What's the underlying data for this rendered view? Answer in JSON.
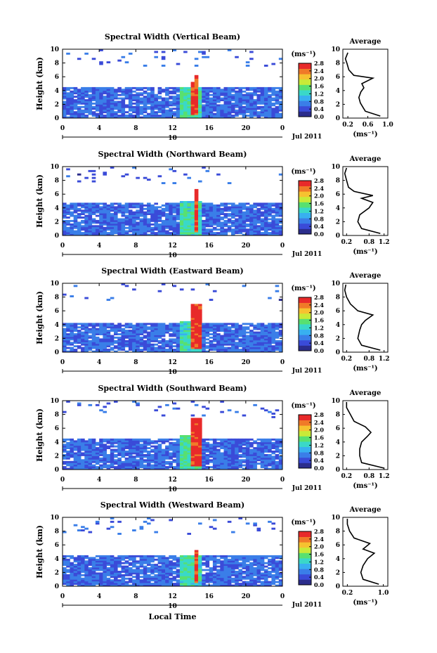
{
  "chart_data": [
    {
      "type": "heatmap",
      "title": "Spectral Width (Vertical Beam)",
      "ylabel": "Height (km)",
      "x_ticks": [
        "0",
        "4",
        "8",
        "12",
        "16",
        "20",
        "0"
      ],
      "y_ticks": [
        "0",
        "2",
        "4",
        "6",
        "8",
        "10"
      ],
      "xlim": [
        0,
        24
      ],
      "ylim": [
        0,
        10
      ],
      "date_marker": "10",
      "date_label": "Jul 2011",
      "colorbar": {
        "unit": "(ms⁻¹)",
        "ticks": [
          "0.0",
          "0.4",
          "0.8",
          "1.2",
          "1.6",
          "2.0",
          "2.4",
          "2.8"
        ]
      },
      "layers": [
        {
          "x": [
            0,
            24
          ],
          "y": [
            0,
            4.5
          ],
          "level": 0.5
        },
        {
          "x": [
            13,
            15
          ],
          "y": [
            0,
            4.5
          ],
          "level": 1.4
        },
        {
          "x": [
            14.2,
            14.9
          ],
          "y": [
            0.5,
            5.2
          ],
          "level": 2.8
        },
        {
          "x": [
            14.3,
            14.8
          ],
          "y": [
            5.2,
            6.3
          ],
          "level": 2.6
        }
      ],
      "average": {
        "title": "Average",
        "xlabel": "(ms⁻¹)",
        "x_ticks": [
          "0.2",
          "0.6",
          "1.0"
        ],
        "xlim": [
          0.1,
          1.0
        ],
        "ylim": [
          0,
          10
        ],
        "points": [
          [
            0.85,
            0.3
          ],
          [
            0.55,
            1.0
          ],
          [
            0.5,
            1.6
          ],
          [
            0.45,
            2.2
          ],
          [
            0.42,
            3.0
          ],
          [
            0.46,
            3.8
          ],
          [
            0.52,
            4.4
          ],
          [
            0.48,
            5.0
          ],
          [
            0.7,
            5.8
          ],
          [
            0.32,
            6.2
          ],
          [
            0.22,
            7.0
          ],
          [
            0.18,
            8.0
          ],
          [
            0.15,
            8.6
          ],
          [
            0.2,
            9.5
          ]
        ]
      }
    },
    {
      "type": "heatmap",
      "title": "Spectral Width (Northward Beam)",
      "ylabel": "Height (km)",
      "x_ticks": [
        "0",
        "4",
        "8",
        "12",
        "16",
        "20",
        "0"
      ],
      "y_ticks": [
        "0",
        "2",
        "4",
        "6",
        "8",
        "10"
      ],
      "xlim": [
        0,
        24
      ],
      "ylim": [
        0,
        10
      ],
      "date_marker": "10",
      "date_label": "Jul 2011",
      "colorbar": {
        "unit": "(ms⁻¹)",
        "ticks": [
          "0.0",
          "0.4",
          "0.8",
          "1.2",
          "1.6",
          "2.0",
          "2.4",
          "2.8"
        ]
      },
      "layers": [
        {
          "x": [
            0,
            24
          ],
          "y": [
            0,
            4.8
          ],
          "level": 0.5
        },
        {
          "x": [
            13,
            15
          ],
          "y": [
            0,
            5.0
          ],
          "level": 1.3
        },
        {
          "x": [
            14.3,
            14.9
          ],
          "y": [
            0.4,
            6.8
          ],
          "level": 2.8
        }
      ],
      "average": {
        "title": "Average",
        "xlabel": "(ms⁻¹)",
        "x_ticks": [
          "0.2",
          "0.8",
          "1.2"
        ],
        "xlim": [
          0.1,
          1.3
        ],
        "ylim": [
          0,
          10
        ],
        "points": [
          [
            1.1,
            0.3
          ],
          [
            0.6,
            1.0
          ],
          [
            0.5,
            2.0
          ],
          [
            0.55,
            3.0
          ],
          [
            0.8,
            4.0
          ],
          [
            0.9,
            4.8
          ],
          [
            0.6,
            5.4
          ],
          [
            0.9,
            5.8
          ],
          [
            0.4,
            6.4
          ],
          [
            0.25,
            7.0
          ],
          [
            0.2,
            8.0
          ],
          [
            0.15,
            9.0
          ],
          [
            0.2,
            9.8
          ]
        ]
      }
    },
    {
      "type": "heatmap",
      "title": "Spectral Width (Eastward Beam)",
      "ylabel": "Height (km)",
      "x_ticks": [
        "0",
        "4",
        "8",
        "12",
        "16",
        "20",
        "0"
      ],
      "y_ticks": [
        "0",
        "2",
        "4",
        "6",
        "8",
        "10"
      ],
      "xlim": [
        0,
        24
      ],
      "ylim": [
        0,
        10
      ],
      "date_marker": "10",
      "date_label": "Jul 2011",
      "colorbar": {
        "unit": "(ms⁻¹)",
        "ticks": [
          "0.0",
          "0.4",
          "0.8",
          "1.2",
          "1.6",
          "2.0",
          "2.4",
          "2.8"
        ]
      },
      "layers": [
        {
          "x": [
            0,
            24
          ],
          "y": [
            0,
            4.3
          ],
          "level": 0.5
        },
        {
          "x": [
            13,
            15
          ],
          "y": [
            0,
            4.6
          ],
          "level": 1.3
        },
        {
          "x": [
            14.2,
            15.0
          ],
          "y": [
            0.4,
            7.0
          ],
          "level": 2.8
        }
      ],
      "average": {
        "title": "Average",
        "xlabel": "(ms⁻¹)",
        "x_ticks": [
          "0.2",
          "0.8",
          "1.2"
        ],
        "xlim": [
          0.1,
          1.3
        ],
        "ylim": [
          0,
          10
        ],
        "points": [
          [
            1.1,
            0.3
          ],
          [
            0.6,
            1.0
          ],
          [
            0.5,
            2.0
          ],
          [
            0.55,
            3.2
          ],
          [
            0.6,
            4.0
          ],
          [
            0.7,
            4.6
          ],
          [
            0.9,
            5.4
          ],
          [
            0.5,
            6.0
          ],
          [
            0.3,
            7.0
          ],
          [
            0.2,
            8.0
          ],
          [
            0.15,
            9.0
          ],
          [
            0.18,
            9.8
          ]
        ]
      }
    },
    {
      "type": "heatmap",
      "title": "Spectral Width (Southward Beam)",
      "ylabel": "Height (km)",
      "x_ticks": [
        "0",
        "4",
        "8",
        "12",
        "16",
        "20",
        "0"
      ],
      "y_ticks": [
        "0",
        "2",
        "4",
        "6",
        "8",
        "10"
      ],
      "xlim": [
        0,
        24
      ],
      "ylim": [
        0,
        10
      ],
      "date_marker": "10",
      "date_label": "Jul 2011",
      "colorbar": {
        "unit": "(ms⁻¹)",
        "ticks": [
          "0.0",
          "0.4",
          "0.8",
          "1.2",
          "1.6",
          "2.0",
          "2.4",
          "2.8"
        ]
      },
      "layers": [
        {
          "x": [
            0,
            24
          ],
          "y": [
            0,
            4.6
          ],
          "level": 0.5
        },
        {
          "x": [
            13,
            15
          ],
          "y": [
            0,
            5.0
          ],
          "level": 1.4
        },
        {
          "x": [
            14.1,
            15.0
          ],
          "y": [
            0.4,
            7.5
          ],
          "level": 2.8
        }
      ],
      "average": {
        "title": "Average",
        "xlabel": "(ms⁻¹)",
        "x_ticks": [
          "0.2",
          "0.8",
          "1.2"
        ],
        "xlim": [
          0.1,
          1.3
        ],
        "ylim": [
          0,
          10
        ],
        "points": [
          [
            1.2,
            0.2
          ],
          [
            0.6,
            1.0
          ],
          [
            0.55,
            2.0
          ],
          [
            0.55,
            3.0
          ],
          [
            0.6,
            4.0
          ],
          [
            0.75,
            4.8
          ],
          [
            0.85,
            5.4
          ],
          [
            0.7,
            6.2
          ],
          [
            0.4,
            7.0
          ],
          [
            0.3,
            8.0
          ],
          [
            0.2,
            9.0
          ],
          [
            0.2,
            9.8
          ]
        ]
      }
    },
    {
      "type": "heatmap",
      "title": "Spectral Width (Westward Beam)",
      "ylabel": "Height (km)",
      "xlabel": "Local Time",
      "x_ticks": [
        "0",
        "4",
        "8",
        "12",
        "16",
        "20",
        "0"
      ],
      "y_ticks": [
        "0",
        "2",
        "4",
        "6",
        "8",
        "10"
      ],
      "xlim": [
        0,
        24
      ],
      "ylim": [
        0,
        10
      ],
      "date_marker": "10",
      "date_label": "Jul 2011",
      "colorbar": {
        "unit": "(ms⁻¹)",
        "ticks": [
          "0.0",
          "0.4",
          "0.8",
          "1.2",
          "1.6",
          "2.0",
          "2.4",
          "2.8"
        ]
      },
      "layers": [
        {
          "x": [
            0,
            24
          ],
          "y": [
            0,
            4.4
          ],
          "level": 0.5
        },
        {
          "x": [
            13,
            15
          ],
          "y": [
            0,
            4.6
          ],
          "level": 1.3
        },
        {
          "x": [
            14.3,
            14.9
          ],
          "y": [
            0.4,
            5.2
          ],
          "level": 2.8
        }
      ],
      "average": {
        "title": "Average",
        "xlabel": "(ms⁻¹)",
        "x_ticks": [
          "0.2",
          "1.0"
        ],
        "xlim": [
          0.1,
          1.1
        ],
        "ylim": [
          0,
          10
        ],
        "points": [
          [
            0.9,
            0.3
          ],
          [
            0.55,
            1.0
          ],
          [
            0.5,
            2.0
          ],
          [
            0.55,
            3.0
          ],
          [
            0.65,
            4.0
          ],
          [
            0.8,
            4.8
          ],
          [
            0.55,
            5.4
          ],
          [
            0.7,
            6.2
          ],
          [
            0.35,
            7.0
          ],
          [
            0.25,
            8.0
          ],
          [
            0.2,
            9.0
          ],
          [
            0.2,
            9.8
          ]
        ]
      }
    }
  ],
  "palette": [
    "#2b2d8c",
    "#3a4bd8",
    "#3a7ee8",
    "#38b0f0",
    "#3ad8c8",
    "#58e070",
    "#c8ea38",
    "#f6c230",
    "#f07a28",
    "#e82a2a"
  ]
}
